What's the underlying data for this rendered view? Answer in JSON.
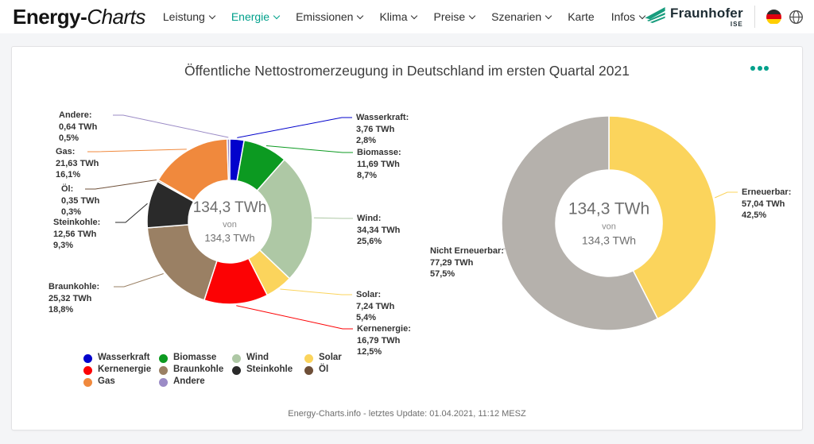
{
  "header": {
    "logo_part1": "Energy-",
    "logo_part2": "Charts",
    "nav": [
      {
        "label": "Leistung",
        "chevron": true,
        "active": false
      },
      {
        "label": "Energie",
        "chevron": true,
        "active": true
      },
      {
        "label": "Emissionen",
        "chevron": true,
        "active": false
      },
      {
        "label": "Klima",
        "chevron": true,
        "active": false
      },
      {
        "label": "Preise",
        "chevron": true,
        "active": false
      },
      {
        "label": "Szenarien",
        "chevron": true,
        "active": false
      },
      {
        "label": "Karte",
        "chevron": false,
        "active": false
      },
      {
        "label": "Infos",
        "chevron": true,
        "active": false
      }
    ],
    "fraunhofer": {
      "name": "Fraunhofer",
      "sub": "ISE"
    },
    "accent_color": "#00a08b"
  },
  "card": {
    "title": "Öffentliche Nettostromerzeugung in Deutschland im ersten Quartal 2021",
    "footer": "Energy-Charts.info - letztes Update: 01.04.2021, 11:12 MESZ"
  },
  "chart_data": [
    {
      "type": "pie",
      "donut": true,
      "unit": "TWh",
      "center_label": {
        "value": "134,3 TWh",
        "connector": "von",
        "total": "134,3 TWh"
      },
      "slices": [
        {
          "name": "Wasserkraft",
          "label": "Wasserkraft:",
          "value": 3.76,
          "value_label": "3,76 TWh",
          "percent": 2.8,
          "percent_label": "2,8%",
          "color": "#0202cc"
        },
        {
          "name": "Biomasse",
          "label": "Biomasse:",
          "value": 11.69,
          "value_label": "11,69 TWh",
          "percent": 8.7,
          "percent_label": "8,7%",
          "color": "#0c9a21"
        },
        {
          "name": "Wind",
          "label": "Wind:",
          "value": 34.34,
          "value_label": "34,34 TWh",
          "percent": 25.6,
          "percent_label": "25,6%",
          "color": "#aec8a5"
        },
        {
          "name": "Solar",
          "label": "Solar:",
          "value": 7.24,
          "value_label": "7,24 TWh",
          "percent": 5.4,
          "percent_label": "5,4%",
          "color": "#fbd45c"
        },
        {
          "name": "Kernenergie",
          "label": "Kernenergie:",
          "value": 16.79,
          "value_label": "16,79 TWh",
          "percent": 12.5,
          "percent_label": "12,5%",
          "color": "#fc0204"
        },
        {
          "name": "Braunkohle",
          "label": "Braunkohle:",
          "value": 25.32,
          "value_label": "25,32 TWh",
          "percent": 18.8,
          "percent_label": "18,8%",
          "color": "#9a8064"
        },
        {
          "name": "Steinkohle",
          "label": "Steinkohle:",
          "value": 12.56,
          "value_label": "12,56 TWh",
          "percent": 9.3,
          "percent_label": "9,3%",
          "color": "#2a2a2a"
        },
        {
          "name": "Öl",
          "label": "Öl:",
          "value": 0.35,
          "value_label": "0,35 TWh",
          "percent": 0.3,
          "percent_label": "0,3%",
          "color": "#6e4f38"
        },
        {
          "name": "Gas",
          "label": "Gas:",
          "value": 21.63,
          "value_label": "21,63 TWh",
          "percent": 16.1,
          "percent_label": "16,1%",
          "color": "#f0893d"
        },
        {
          "name": "Andere",
          "label": "Andere:",
          "value": 0.64,
          "value_label": "0,64 TWh",
          "percent": 0.5,
          "percent_label": "0,5%",
          "color": "#9b8bc6"
        }
      ]
    },
    {
      "type": "pie",
      "donut": true,
      "unit": "TWh",
      "center_label": {
        "value": "134,3 TWh",
        "connector": "von",
        "total": "134,3 TWh"
      },
      "slices": [
        {
          "name": "Erneuerbar",
          "label": "Erneuerbar:",
          "value": 57.04,
          "value_label": "57,04 TWh",
          "percent": 42.5,
          "percent_label": "42,5%",
          "color": "#fbd45c"
        },
        {
          "name": "Nicht Erneuerbar",
          "label": "Nicht Erneuerbar:",
          "value": 77.29,
          "value_label": "77,29 TWh",
          "percent": 57.5,
          "percent_label": "57,5%",
          "color": "#b5b1ac"
        }
      ]
    }
  ],
  "legend": {
    "items": [
      "Wasserkraft",
      "Biomasse",
      "Wind",
      "Solar",
      "Kernenergie",
      "Braunkohle",
      "Steinkohle",
      "Öl",
      "Gas",
      "Andere"
    ]
  }
}
